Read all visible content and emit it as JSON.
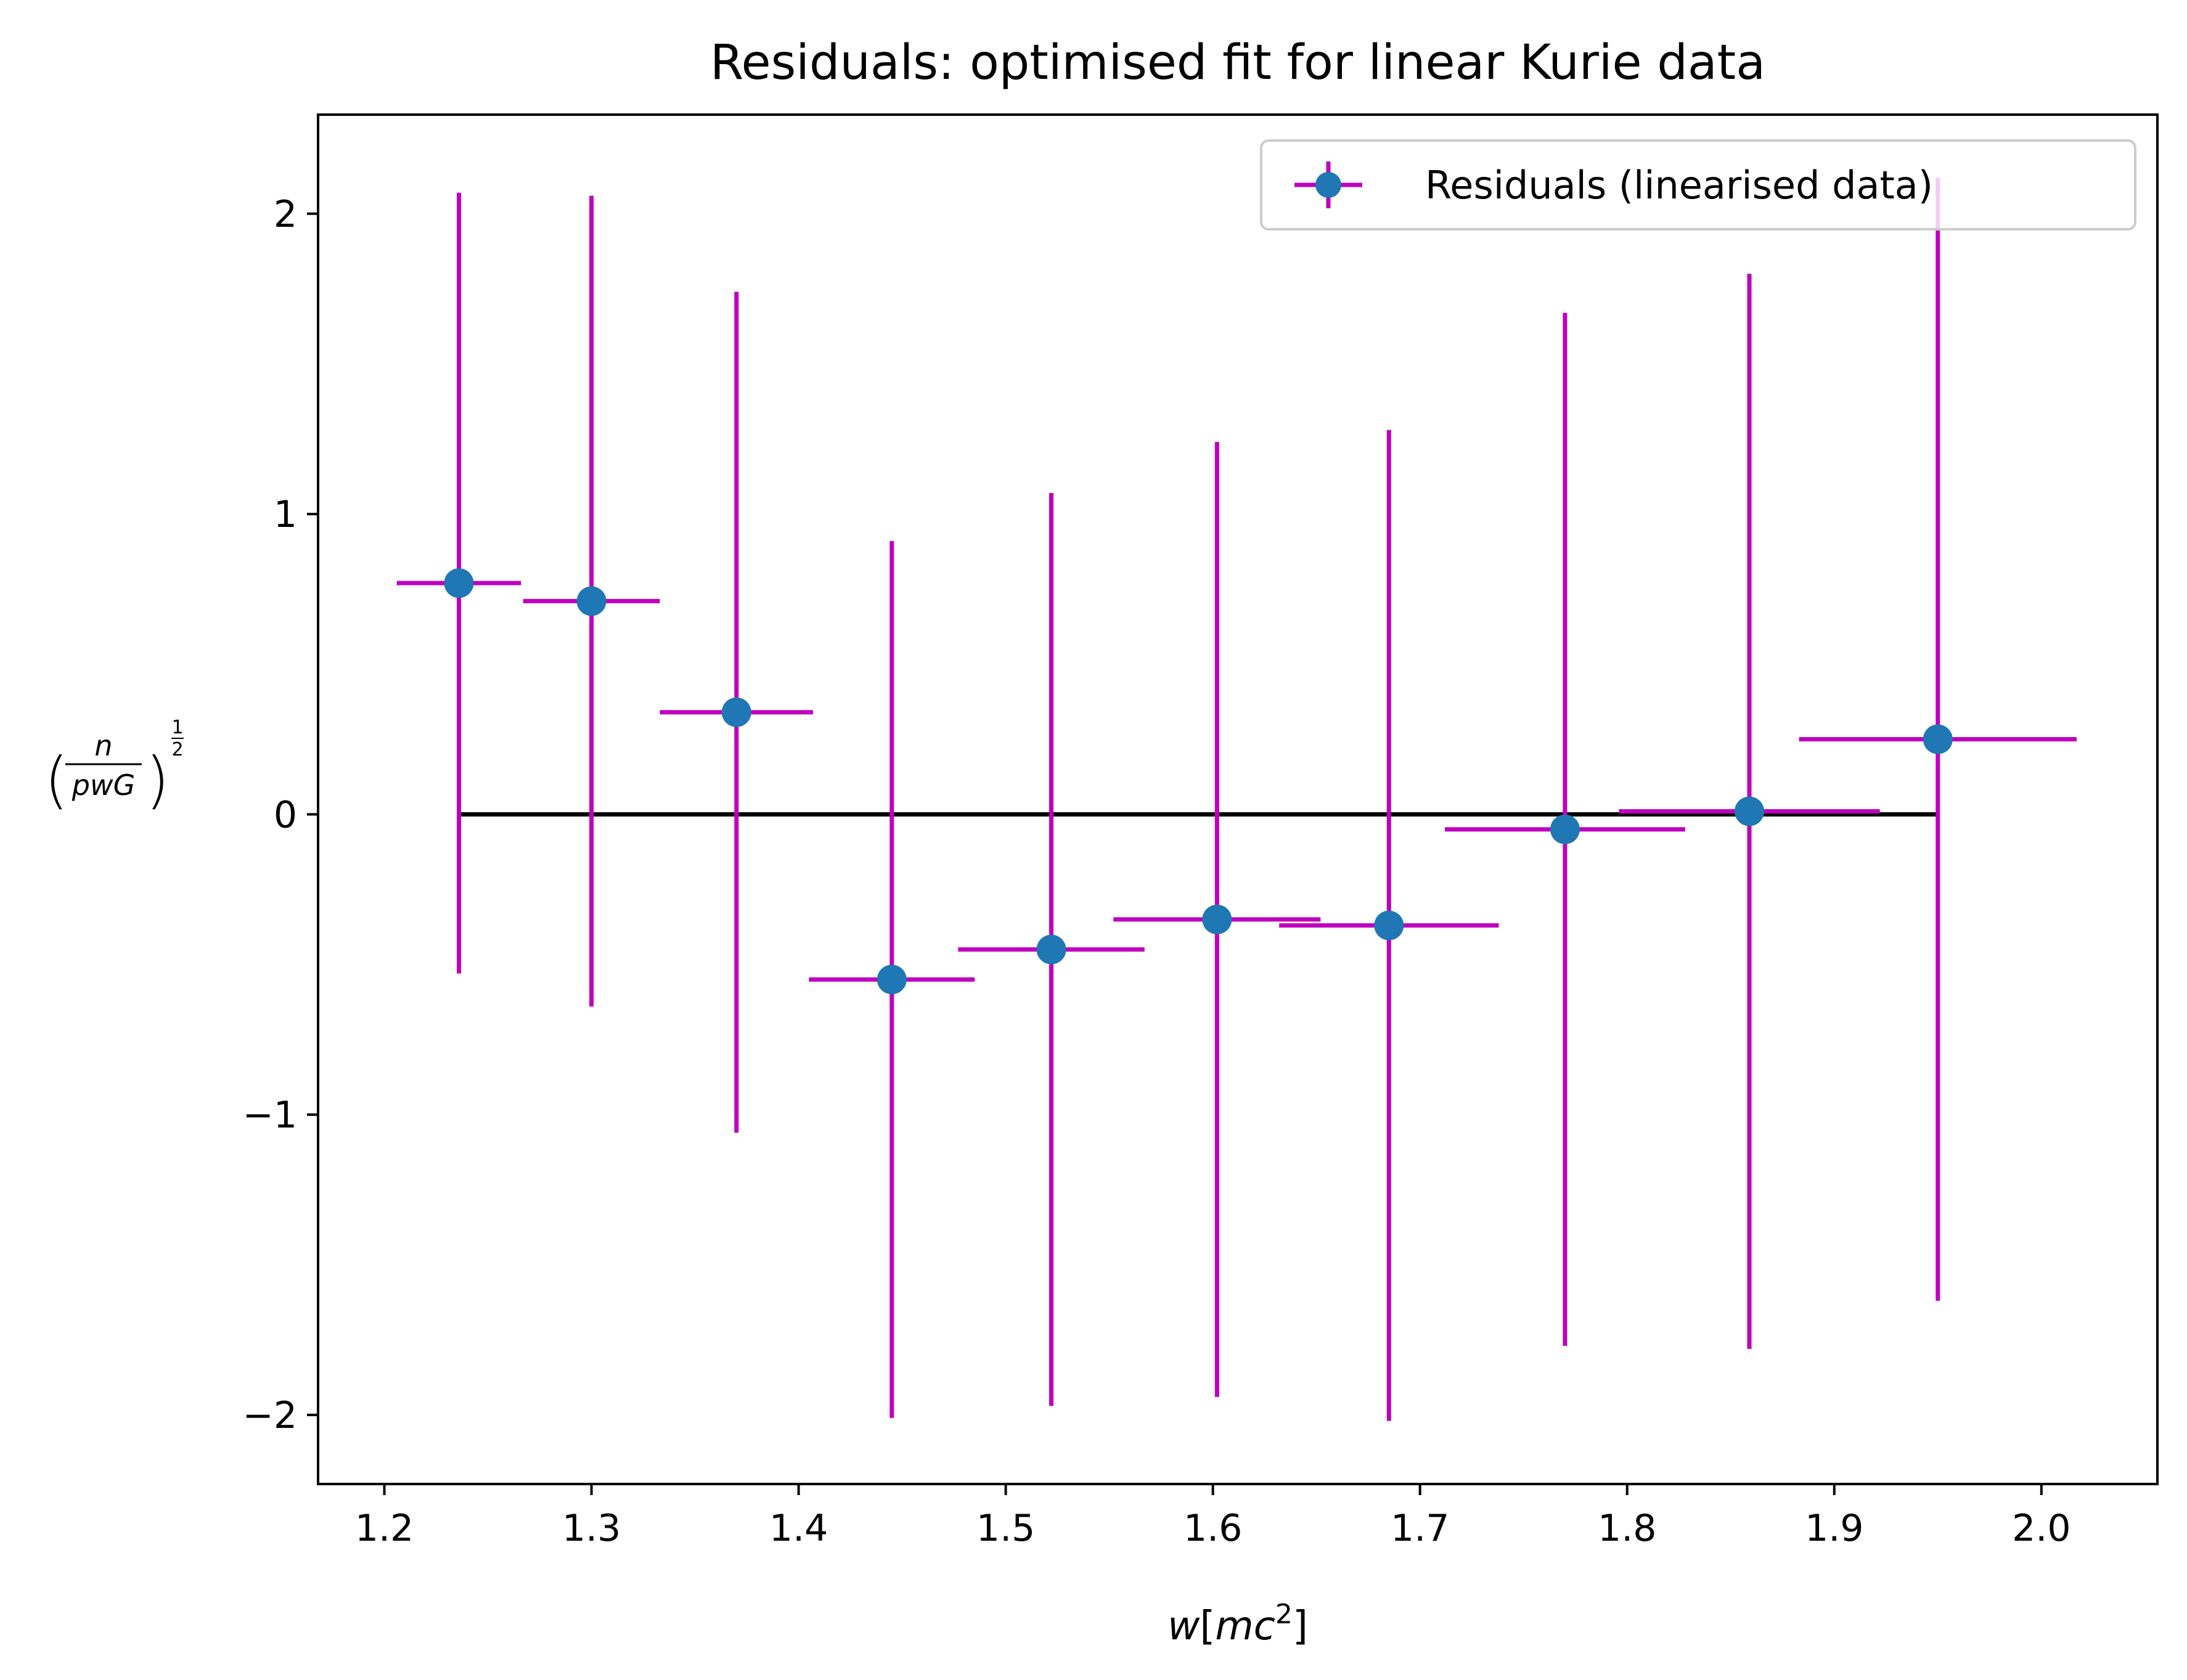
{
  "chart_data": {
    "type": "scatter",
    "title": "Residuals: optimised fit for linear Kurie data",
    "xlabel_parts": {
      "base": "w",
      "open": "[",
      "inner": "mc",
      "sup": "2",
      "close": "]"
    },
    "ylabel_parts": {
      "num": "n",
      "den": "pwG",
      "exp_num": "1",
      "exp_den": "2"
    },
    "xlim": [
      1.168,
      2.056
    ],
    "ylim": [
      -2.23,
      2.33
    ],
    "x_ticks": [
      1.2,
      1.3,
      1.4,
      1.5,
      1.6,
      1.7,
      1.8,
      1.9,
      2.0
    ],
    "x_tick_labels": [
      "1.2",
      "1.3",
      "1.4",
      "1.5",
      "1.6",
      "1.7",
      "1.8",
      "1.9",
      "2.0"
    ],
    "y_ticks": [
      -2,
      -1,
      0,
      1,
      2
    ],
    "y_tick_labels": [
      "−2",
      "−1",
      "0",
      "1",
      "2"
    ],
    "legend": {
      "label": "Residuals (linearised data)",
      "location": "upper right"
    },
    "zero_line": {
      "x_start": 1.236,
      "x_end": 1.95,
      "y": 0
    },
    "colors": {
      "marker": "#1f77b4",
      "errorbar": "#bf00bf",
      "zero_line": "#000000",
      "axes": "#000000"
    },
    "series": [
      {
        "name": "Residuals (linearised data)",
        "points": [
          {
            "x": 1.236,
            "y": 0.77,
            "xerr": [
              0.03,
              0.03
            ],
            "yerr": [
              1.3,
              1.3
            ]
          },
          {
            "x": 1.3,
            "y": 0.71,
            "xerr": [
              0.033,
              0.033
            ],
            "yerr": [
              1.35,
              1.35
            ]
          },
          {
            "x": 1.37,
            "y": 0.34,
            "xerr": [
              0.037,
              0.037
            ],
            "yerr": [
              1.4,
              1.4
            ]
          },
          {
            "x": 1.445,
            "y": -0.55,
            "xerr": [
              0.04,
              0.04
            ],
            "yerr": [
              1.46,
              1.46
            ]
          },
          {
            "x": 1.522,
            "y": -0.45,
            "xerr": [
              0.045,
              0.045
            ],
            "yerr": [
              1.52,
              1.52
            ]
          },
          {
            "x": 1.602,
            "y": -0.35,
            "xerr": [
              0.05,
              0.05
            ],
            "yerr": [
              1.59,
              1.59
            ]
          },
          {
            "x": 1.685,
            "y": -0.37,
            "xerr": [
              0.053,
              0.053
            ],
            "yerr": [
              1.65,
              1.65
            ]
          },
          {
            "x": 1.77,
            "y": -0.05,
            "xerr": [
              0.058,
              0.058
            ],
            "yerr": [
              1.72,
              1.72
            ]
          },
          {
            "x": 1.859,
            "y": 0.01,
            "xerr": [
              0.063,
              0.063
            ],
            "yerr": [
              1.79,
              1.79
            ]
          },
          {
            "x": 1.95,
            "y": 0.25,
            "xerr": [
              0.067,
              0.067
            ],
            "yerr": [
              1.87,
              1.87
            ]
          }
        ]
      }
    ]
  }
}
